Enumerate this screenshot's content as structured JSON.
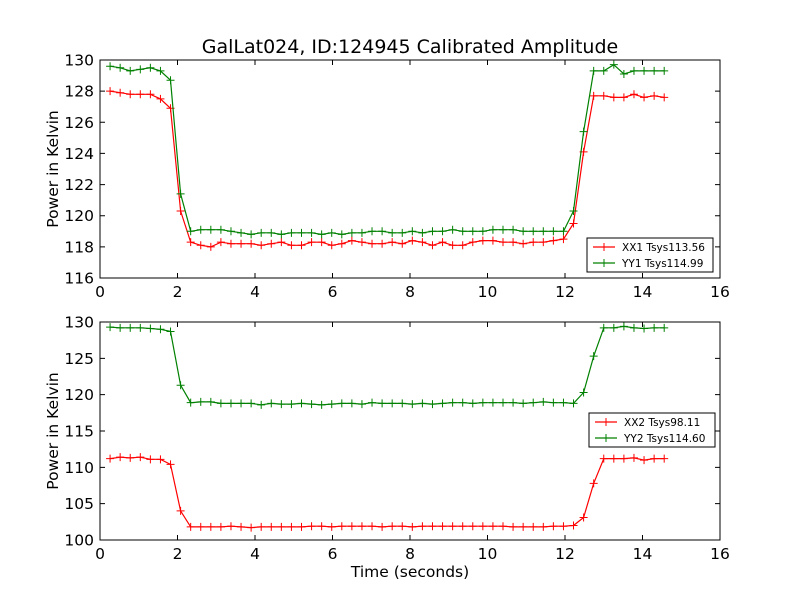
{
  "chart_data": {
    "title": "GalLat024, ID:124945 Calibrated Amplitude",
    "panels": [
      {
        "type": "line",
        "ylabel": "Power in Kelvin",
        "xlabel": "",
        "xlim": [
          0,
          16
        ],
        "ylim": [
          116,
          130
        ],
        "xticks": [
          0,
          2,
          4,
          6,
          8,
          10,
          12,
          14,
          16
        ],
        "yticks": [
          116,
          118,
          120,
          122,
          124,
          126,
          128,
          130
        ],
        "grid": false,
        "legend_position": "lower-right",
        "series": [
          {
            "name": "XX1 Tsys113.56",
            "color": "#ff0000",
            "x": [
              0.26,
              0.52,
              0.78,
              1.04,
              1.3,
              1.56,
              1.82,
              2.08,
              2.34,
              2.6,
              2.86,
              3.12,
              3.38,
              3.64,
              3.9,
              4.16,
              4.42,
              4.68,
              4.94,
              5.2,
              5.46,
              5.72,
              5.98,
              6.24,
              6.5,
              6.76,
              7.02,
              7.28,
              7.54,
              7.8,
              8.06,
              8.32,
              8.58,
              8.84,
              9.1,
              9.36,
              9.62,
              9.88,
              10.14,
              10.4,
              10.66,
              10.92,
              11.18,
              11.44,
              11.7,
              11.96,
              12.22,
              12.48,
              12.74,
              13.0,
              13.26,
              13.52,
              13.78,
              14.04,
              14.3,
              14.56
            ],
            "y": [
              128.0,
              127.9,
              127.8,
              127.8,
              127.8,
              127.5,
              126.9,
              120.3,
              118.3,
              118.1,
              118.0,
              118.3,
              118.2,
              118.2,
              118.2,
              118.1,
              118.2,
              118.3,
              118.1,
              118.1,
              118.3,
              118.3,
              118.1,
              118.2,
              118.4,
              118.3,
              118.2,
              118.2,
              118.3,
              118.2,
              118.4,
              118.3,
              118.1,
              118.3,
              118.1,
              118.1,
              118.3,
              118.4,
              118.4,
              118.3,
              118.3,
              118.2,
              118.3,
              118.3,
              118.4,
              118.5,
              119.5,
              124.1,
              127.7,
              127.7,
              127.6,
              127.6,
              127.8,
              127.6,
              127.7,
              127.6
            ]
          },
          {
            "name": "YY1 Tsys114.99",
            "color": "#008000",
            "x": [
              0.26,
              0.52,
              0.78,
              1.04,
              1.3,
              1.56,
              1.82,
              2.08,
              2.34,
              2.6,
              2.86,
              3.12,
              3.38,
              3.64,
              3.9,
              4.16,
              4.42,
              4.68,
              4.94,
              5.2,
              5.46,
              5.72,
              5.98,
              6.24,
              6.5,
              6.76,
              7.02,
              7.28,
              7.54,
              7.8,
              8.06,
              8.32,
              8.58,
              8.84,
              9.1,
              9.36,
              9.62,
              9.88,
              10.14,
              10.4,
              10.66,
              10.92,
              11.18,
              11.44,
              11.7,
              11.96,
              12.22,
              12.48,
              12.74,
              13.0,
              13.26,
              13.52,
              13.78,
              14.04,
              14.3,
              14.56
            ],
            "y": [
              129.6,
              129.5,
              129.3,
              129.4,
              129.5,
              129.3,
              128.7,
              121.4,
              119.0,
              119.1,
              119.1,
              119.1,
              119.0,
              118.9,
              118.8,
              118.9,
              118.9,
              118.8,
              118.9,
              118.9,
              118.9,
              118.8,
              118.9,
              118.8,
              118.9,
              118.9,
              119.0,
              119.0,
              118.9,
              118.9,
              119.0,
              118.9,
              119.0,
              119.0,
              119.1,
              119.0,
              119.0,
              119.0,
              119.1,
              119.1,
              119.1,
              119.0,
              119.0,
              119.0,
              119.0,
              119.0,
              120.3,
              125.4,
              129.3,
              129.3,
              129.7,
              129.1,
              129.3,
              129.3,
              129.3,
              129.3
            ]
          }
        ]
      },
      {
        "type": "line",
        "ylabel": "Power in Kelvin",
        "xlabel": "Time (seconds)",
        "xlim": [
          0,
          16
        ],
        "ylim": [
          100,
          130
        ],
        "xticks": [
          0,
          2,
          4,
          6,
          8,
          10,
          12,
          14,
          16
        ],
        "yticks": [
          100,
          105,
          110,
          115,
          120,
          125,
          130
        ],
        "grid": false,
        "legend_position": "right",
        "series": [
          {
            "name": "XX2 Tsys98.11",
            "color": "#ff0000",
            "x": [
              0.26,
              0.52,
              0.78,
              1.04,
              1.3,
              1.56,
              1.82,
              2.08,
              2.34,
              2.6,
              2.86,
              3.12,
              3.38,
              3.64,
              3.9,
              4.16,
              4.42,
              4.68,
              4.94,
              5.2,
              5.46,
              5.72,
              5.98,
              6.24,
              6.5,
              6.76,
              7.02,
              7.28,
              7.54,
              7.8,
              8.06,
              8.32,
              8.58,
              8.84,
              9.1,
              9.36,
              9.62,
              9.88,
              10.14,
              10.4,
              10.66,
              10.92,
              11.18,
              11.44,
              11.7,
              11.96,
              12.22,
              12.48,
              12.74,
              13.0,
              13.26,
              13.52,
              13.78,
              14.04,
              14.3,
              14.56
            ],
            "y": [
              111.2,
              111.4,
              111.3,
              111.4,
              111.1,
              111.1,
              110.4,
              104.0,
              101.8,
              101.8,
              101.8,
              101.8,
              101.9,
              101.8,
              101.7,
              101.8,
              101.8,
              101.8,
              101.8,
              101.8,
              101.9,
              101.9,
              101.8,
              101.9,
              101.9,
              101.9,
              101.9,
              101.8,
              101.9,
              101.9,
              101.8,
              101.9,
              101.9,
              101.9,
              101.9,
              101.9,
              101.9,
              101.9,
              101.9,
              101.9,
              101.8,
              101.8,
              101.8,
              101.8,
              101.9,
              101.9,
              102.0,
              103.1,
              107.8,
              111.2,
              111.2,
              111.2,
              111.3,
              111.0,
              111.2,
              111.2
            ]
          },
          {
            "name": "YY2 Tsys114.60",
            "color": "#008000",
            "x": [
              0.26,
              0.52,
              0.78,
              1.04,
              1.3,
              1.56,
              1.82,
              2.08,
              2.34,
              2.6,
              2.86,
              3.12,
              3.38,
              3.64,
              3.9,
              4.16,
              4.42,
              4.68,
              4.94,
              5.2,
              5.46,
              5.72,
              5.98,
              6.24,
              6.5,
              6.76,
              7.02,
              7.28,
              7.54,
              7.8,
              8.06,
              8.32,
              8.58,
              8.84,
              9.1,
              9.36,
              9.62,
              9.88,
              10.14,
              10.4,
              10.66,
              10.92,
              11.18,
              11.44,
              11.7,
              11.96,
              12.22,
              12.48,
              12.74,
              13.0,
              13.26,
              13.52,
              13.78,
              14.04,
              14.3,
              14.56
            ],
            "y": [
              129.3,
              129.2,
              129.2,
              129.2,
              129.1,
              129.0,
              128.7,
              121.3,
              118.9,
              119.0,
              119.0,
              118.8,
              118.8,
              118.8,
              118.8,
              118.6,
              118.8,
              118.7,
              118.7,
              118.8,
              118.7,
              118.6,
              118.7,
              118.8,
              118.8,
              118.7,
              118.9,
              118.8,
              118.8,
              118.8,
              118.7,
              118.8,
              118.7,
              118.8,
              118.9,
              118.9,
              118.8,
              118.9,
              118.9,
              118.9,
              118.9,
              118.8,
              118.9,
              119.0,
              118.9,
              118.9,
              118.8,
              120.3,
              125.3,
              129.2,
              129.2,
              129.4,
              129.2,
              129.1,
              129.2,
              129.2
            ]
          }
        ]
      }
    ]
  }
}
